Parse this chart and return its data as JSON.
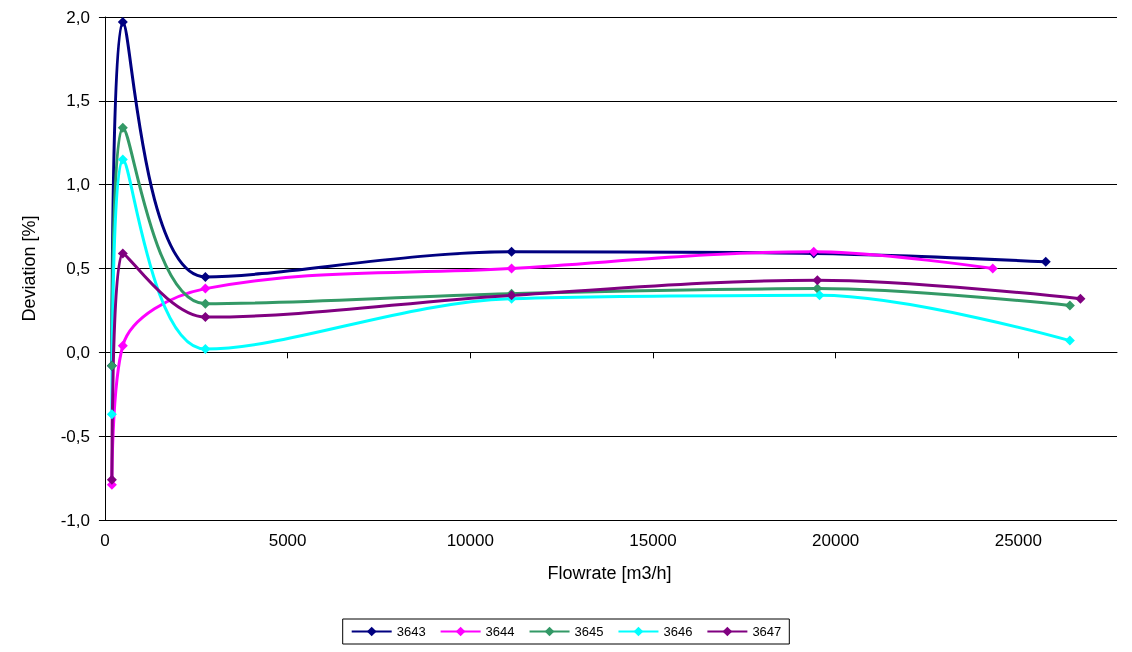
{
  "chart_data": {
    "type": "line",
    "xlabel": "Flowrate [m3/h]",
    "ylabel": "Deviation [%]",
    "xlim": [
      -80,
      27700
    ],
    "xticks": [
      0,
      5000,
      10000,
      15000,
      20000,
      25000
    ],
    "ylim": [
      -1,
      2
    ],
    "yticks": [
      {
        "value": -1,
        "label": "-1,0"
      },
      {
        "value": -0.5,
        "label": "-0,5"
      },
      {
        "value": 0,
        "label": "0,0"
      },
      {
        "value": 0.5,
        "label": "0,5"
      },
      {
        "value": 1,
        "label": "1,0"
      },
      {
        "value": 1.5,
        "label": "1,5"
      },
      {
        "value": 2,
        "label": "2,0"
      }
    ],
    "grid": "y",
    "legend": "bottom",
    "marker": "diamond",
    "line_style": "solid",
    "series": [
      {
        "name": "3643",
        "color": "#000080",
        "x": [
          190,
          490,
          2750,
          11130,
          19400,
          25750
        ],
        "values": [
          -0.08,
          1.97,
          0.45,
          0.6,
          0.59,
          0.54
        ]
      },
      {
        "name": "3644",
        "color": "#ff00ff",
        "x": [
          190,
          490,
          2750,
          11130,
          19400,
          24300
        ],
        "values": [
          -0.79,
          0.04,
          0.38,
          0.5,
          0.6,
          0.5
        ]
      },
      {
        "name": "3645",
        "color": "#339966",
        "x": [
          190,
          490,
          2750,
          11130,
          19500,
          26410
        ],
        "values": [
          -0.08,
          1.34,
          0.29,
          0.35,
          0.38,
          0.28
        ]
      },
      {
        "name": "3646",
        "color": "#00ffff",
        "x": [
          190,
          490,
          2750,
          11130,
          19560,
          26410
        ],
        "values": [
          -0.37,
          1.15,
          0.02,
          0.32,
          0.34,
          0.07
        ]
      },
      {
        "name": "3647",
        "color": "#800080",
        "x": [
          190,
          490,
          2750,
          11130,
          19500,
          26700
        ],
        "values": [
          -0.76,
          0.59,
          0.21,
          0.34,
          0.43,
          0.32
        ]
      }
    ]
  }
}
